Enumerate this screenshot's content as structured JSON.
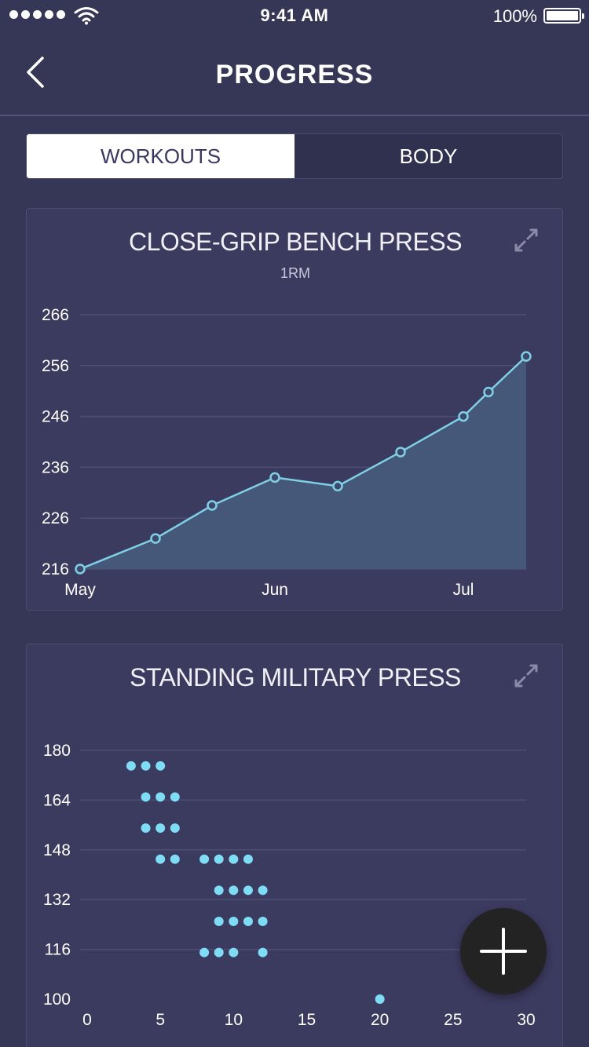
{
  "status_bar": {
    "time": "9:41 AM",
    "battery": "100%"
  },
  "nav": {
    "title": "PROGRESS",
    "back_icon": "chevron-left-icon"
  },
  "tabs": [
    {
      "label": "WORKOUTS",
      "active": true
    },
    {
      "label": "BODY",
      "active": false
    }
  ],
  "colors": {
    "background": "#363657",
    "card": "#3b3a5f",
    "line": "#7fd0e6",
    "area": "#465a7a",
    "scatter": "#7fdcf5",
    "grid": "#4e4e75"
  },
  "chart_data": [
    {
      "type": "area",
      "title": "CLOSE-GRIP BENCH PRESS",
      "subtitle": "1RM",
      "x_tick_labels": [
        "May",
        "Jun",
        "Jul"
      ],
      "x_tick_dates": [
        "2017-05-01",
        "2017-06-01",
        "2017-07-01"
      ],
      "ylim": [
        216,
        266
      ],
      "y_ticks": [
        216,
        226,
        236,
        246,
        256,
        266
      ],
      "grid": true,
      "series": [
        {
          "x": [
            "2017-05-01",
            "2017-05-13",
            "2017-05-22",
            "2017-06-01",
            "2017-06-11",
            "2017-06-21",
            "2017-07-01",
            "2017-07-05",
            "2017-07-11"
          ],
          "y": [
            216,
            222,
            228.5,
            234,
            232.3,
            239,
            246,
            250.8,
            257.8
          ]
        }
      ]
    },
    {
      "type": "scatter",
      "title": "STANDING MILITARY PRESS",
      "xlim": [
        0,
        30
      ],
      "x_ticks": [
        0,
        5,
        10,
        15,
        20,
        25,
        30
      ],
      "ylim": [
        100,
        180
      ],
      "y_ticks": [
        100,
        116,
        132,
        148,
        164,
        180
      ],
      "grid": true,
      "points": [
        [
          3,
          175
        ],
        [
          4,
          175
        ],
        [
          5,
          175
        ],
        [
          4,
          165
        ],
        [
          5,
          165
        ],
        [
          6,
          165
        ],
        [
          4,
          155
        ],
        [
          5,
          155
        ],
        [
          6,
          155
        ],
        [
          5,
          145
        ],
        [
          6,
          145
        ],
        [
          8,
          145
        ],
        [
          9,
          145
        ],
        [
          10,
          145
        ],
        [
          11,
          145
        ],
        [
          9,
          135
        ],
        [
          10,
          135
        ],
        [
          11,
          135
        ],
        [
          12,
          135
        ],
        [
          9,
          125
        ],
        [
          10,
          125
        ],
        [
          11,
          125
        ],
        [
          12,
          125
        ],
        [
          8,
          115
        ],
        [
          9,
          115
        ],
        [
          10,
          115
        ],
        [
          12,
          115
        ],
        [
          20,
          100
        ]
      ]
    }
  ],
  "fab": {
    "icon": "plus-icon"
  }
}
